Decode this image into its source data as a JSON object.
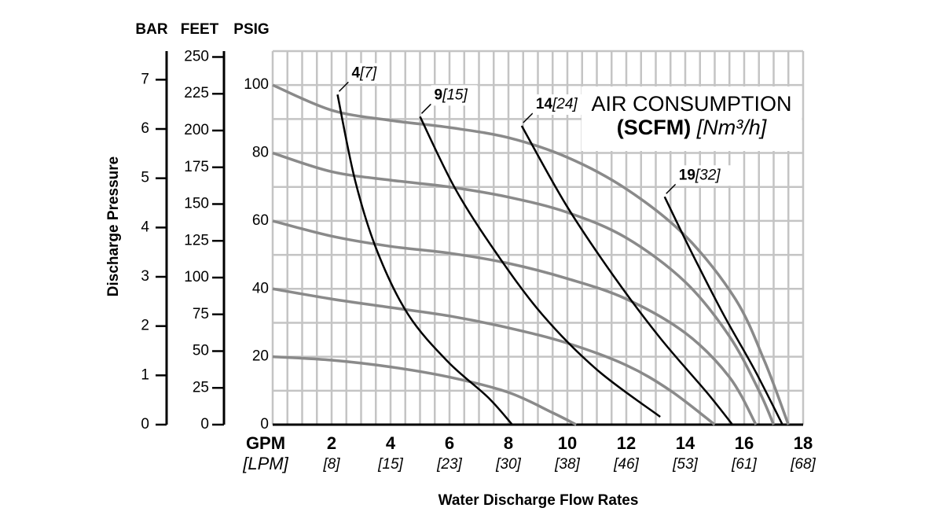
{
  "chart_data": {
    "type": "line",
    "x_label": "Water Discharge Flow Rates",
    "y_label": "Discharge Pressure",
    "x_unit_label": "GPM",
    "x_unit_label_metric": "[LPM]",
    "y_axes_titles": [
      "BAR",
      "FEET",
      "PSIG"
    ],
    "xlim": [
      0,
      18
    ],
    "xticks": [
      2,
      4,
      6,
      8,
      10,
      12,
      14,
      16,
      18
    ],
    "xtick_labels_metric": [
      "[8]",
      "[15]",
      "[23]",
      "[30]",
      "[38]",
      "[46]",
      "[53]",
      "[61]",
      "[68]"
    ],
    "ylim": [
      0,
      110
    ],
    "yticks": [
      0,
      20,
      40,
      60,
      80,
      100
    ],
    "feet_lim": [
      0,
      254
    ],
    "feet_ticks": [
      0,
      25,
      50,
      75,
      100,
      125,
      150,
      175,
      200,
      225,
      250
    ],
    "bar_lim": [
      0,
      7.58
    ],
    "bar_ticks": [
      0,
      1,
      2,
      3,
      4,
      5,
      6,
      7
    ],
    "grid": true,
    "grid_x_step": 0.5,
    "grid_y_step": 10,
    "legend_title": "AIR CONSUMPTION",
    "legend_unit": "(SCFM)",
    "legend_unit_metric": "[Nm³/h]",
    "series": [
      {
        "color": "#8a8a8a",
        "x": [
          0,
          2,
          4,
          6,
          8,
          10,
          12,
          14,
          15.7,
          16.7,
          17.5
        ],
        "values": [
          100,
          92.6,
          89.6,
          87.5,
          84.5,
          78.7,
          69.4,
          55.6,
          37,
          18.5,
          0
        ]
      },
      {
        "color": "#8a8a8a",
        "x": [
          0,
          2,
          4,
          6,
          8,
          10,
          12,
          14,
          15.5,
          16.5,
          17
        ],
        "values": [
          80,
          74.5,
          72,
          70,
          67,
          62.5,
          55,
          42,
          26,
          10,
          0
        ]
      },
      {
        "color": "#8a8a8a",
        "x": [
          0,
          2,
          4,
          6,
          8,
          10,
          12,
          14,
          15.5,
          16.4
        ],
        "values": [
          60,
          55.5,
          52.5,
          50.5,
          47.5,
          43,
          37,
          27,
          14,
          0
        ]
      },
      {
        "color": "#8a8a8a",
        "x": [
          0,
          2,
          4,
          6,
          8,
          10,
          12,
          13.5,
          15
        ],
        "values": [
          40,
          37,
          34.5,
          32,
          28.5,
          24,
          17.5,
          10,
          0
        ]
      },
      {
        "color": "#8a8a8a",
        "x": [
          0,
          2,
          4,
          6,
          8,
          9.5,
          10.3
        ],
        "values": [
          20,
          19,
          17,
          14,
          9.5,
          3.5,
          0
        ]
      },
      {
        "color": "#000000",
        "label": "4",
        "label_metric": "[7]",
        "x": [
          2.2,
          2.8,
          3.55,
          4.6,
          5.95,
          7.3,
          8.13
        ],
        "values": [
          97.2,
          71.8,
          51,
          32.4,
          18.5,
          8.1,
          0
        ]
      },
      {
        "color": "#000000",
        "label": "9",
        "label_metric": "[15]",
        "x": [
          5,
          6.2,
          7.55,
          9.15,
          11,
          13.15
        ],
        "values": [
          90.7,
          69.4,
          51,
          32.4,
          16.2,
          2.3
        ]
      },
      {
        "color": "#000000",
        "label": "14",
        "label_metric": "[24]",
        "x": [
          8.45,
          9.95,
          11.55,
          13.15,
          14.75,
          15.6
        ],
        "values": [
          88,
          64.8,
          44,
          25.5,
          9.3,
          0
        ]
      },
      {
        "color": "#000000",
        "label": "19",
        "label_metric": "[32]",
        "x": [
          13.3,
          14.2,
          15.3,
          16.35,
          17.3
        ],
        "values": [
          67.1,
          51,
          32.4,
          16.2,
          0
        ]
      }
    ]
  }
}
